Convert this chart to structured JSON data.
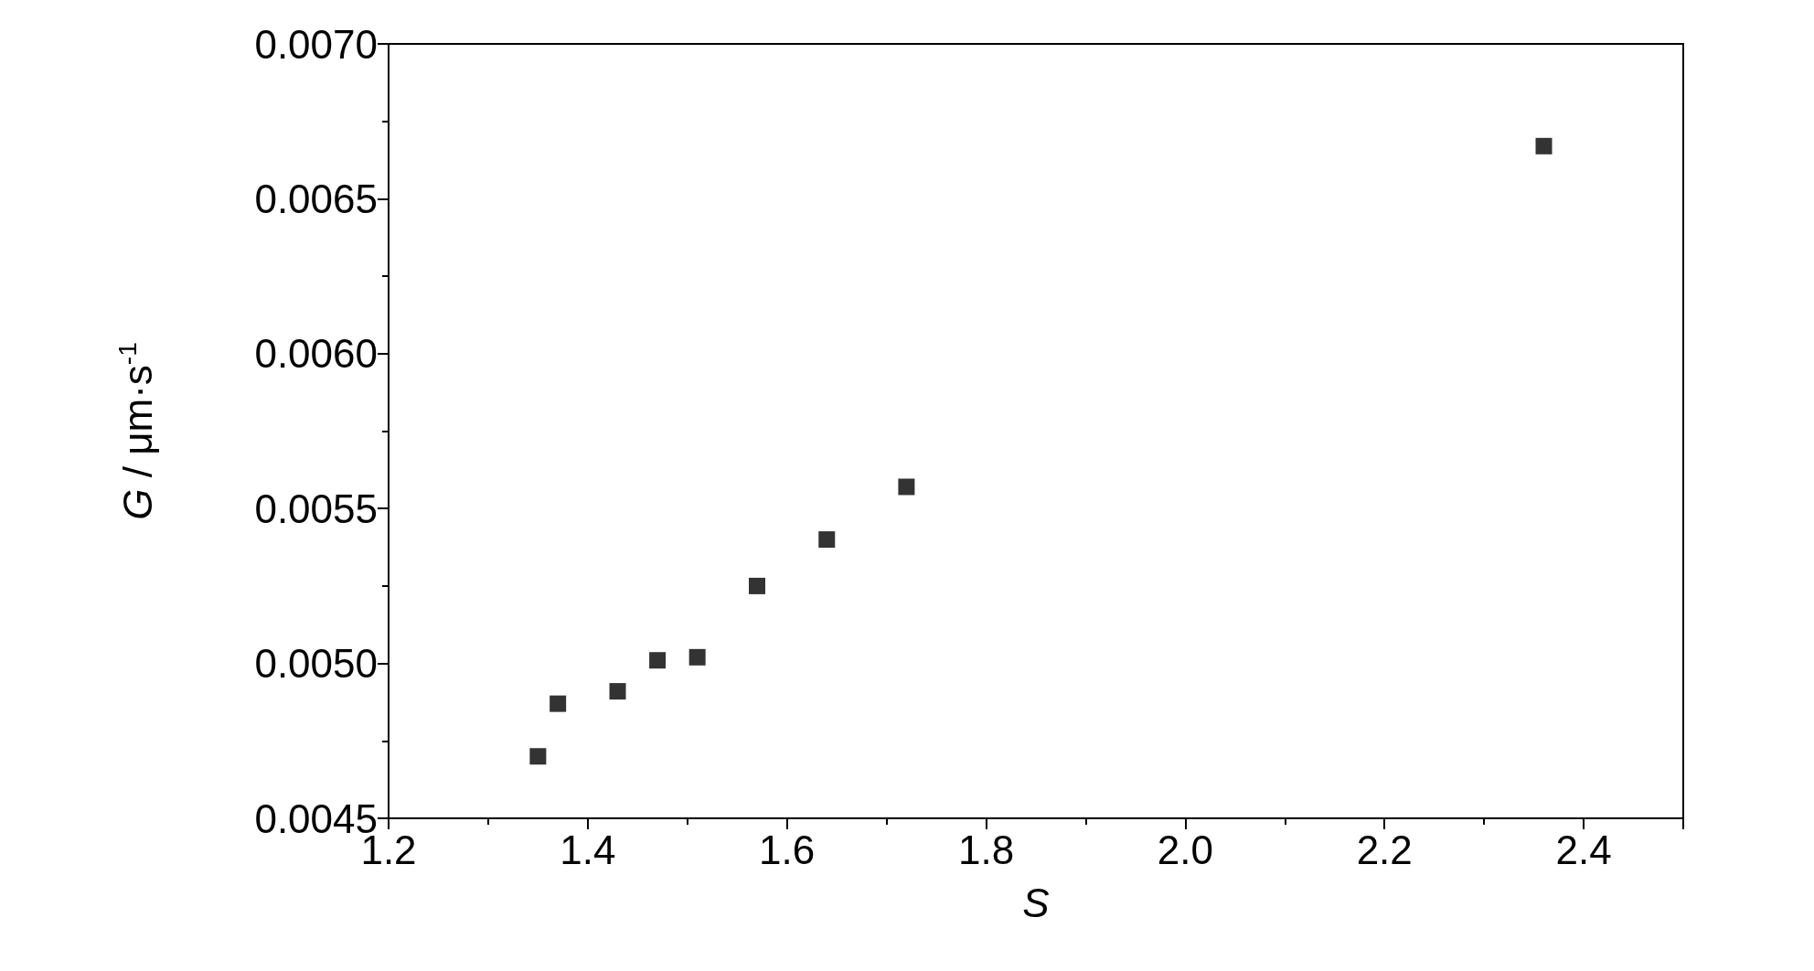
{
  "chart_data": {
    "type": "scatter",
    "xlabel": "S",
    "ylabel": "G / μm·s$^{-1}$",
    "x": [
      1.35,
      1.37,
      1.43,
      1.47,
      1.51,
      1.57,
      1.64,
      1.72,
      2.36
    ],
    "series": [
      {
        "color": "#000000",
        "values": [
          0.0047,
          0.00487,
          0.00491,
          0.00501,
          0.00502,
          0.00525,
          0.0054,
          0.00557,
          0.00667
        ]
      }
    ],
    "marker": "square",
    "xlim": [
      1.2,
      2.5
    ],
    "xticks": [
      1.2,
      1.4,
      1.6,
      1.8,
      {
        "value": 2,
        "label": "2.0"
      },
      2.2,
      2.4
    ],
    "ylim": [
      0.0045,
      0.007
    ],
    "yticks": [
      {
        "value": 0.0045,
        "label": "0.0045"
      },
      {
        "value": 0.005,
        "label": "0.0050"
      },
      {
        "value": 0.0055,
        "label": "0.0055"
      },
      {
        "value": 0.006,
        "label": "0.0060"
      },
      {
        "value": 0.0065,
        "label": "0.0065"
      },
      {
        "value": 0.007,
        "label": "0.0070"
      }
    ],
    "grid": false
  }
}
